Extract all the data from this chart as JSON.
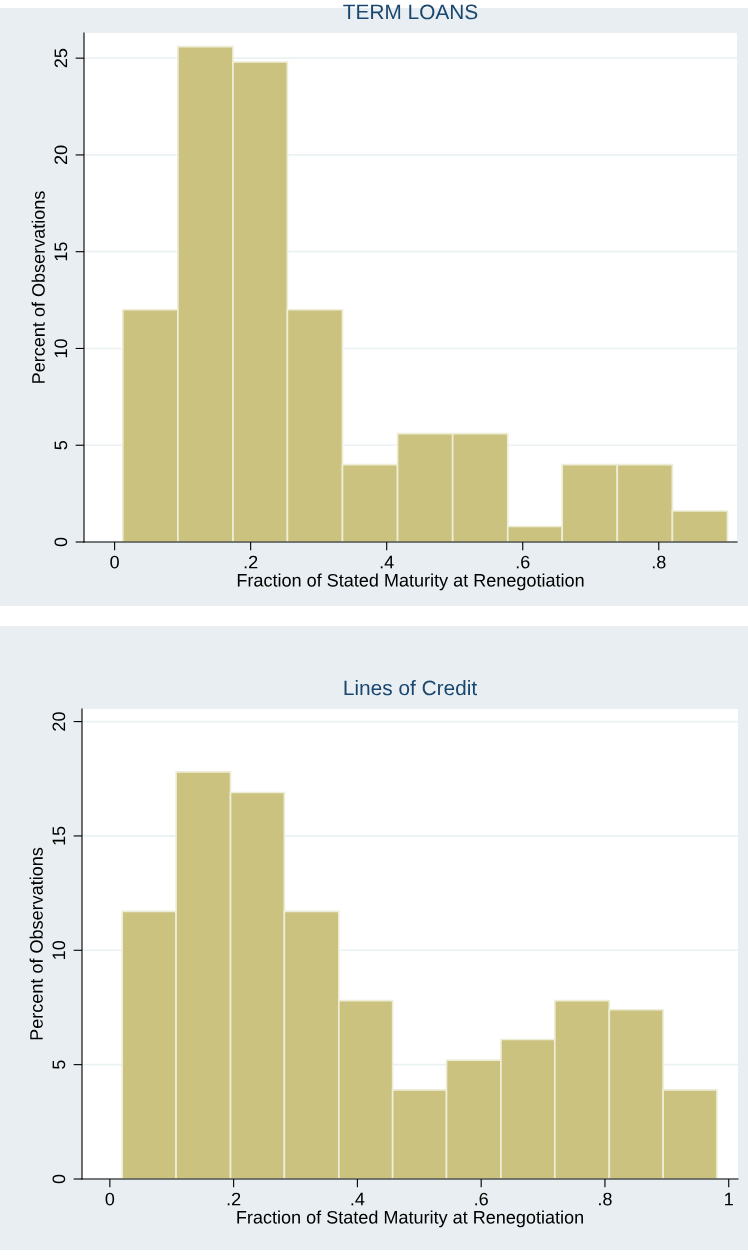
{
  "chart_data": [
    {
      "type": "histogram",
      "title": "TERM LOANS",
      "xlabel": "Fraction of Stated Maturity at Renegotiation",
      "ylabel": "Percent of Observations",
      "color": "#cac27e",
      "bins": [
        0.012,
        0.093,
        0.174,
        0.254,
        0.335,
        0.416,
        0.497,
        0.578,
        0.658,
        0.739,
        0.82,
        0.901
      ],
      "values": [
        12.0,
        25.6,
        24.8,
        12.0,
        4.0,
        5.6,
        5.6,
        0.8,
        4.0,
        4.0,
        1.6
      ],
      "xlim": [
        -0.045,
        0.915
      ],
      "ylim": [
        0,
        26.3
      ],
      "xticks": [
        0,
        {
          "value": 0.2,
          "label": ".2"
        },
        {
          "value": 0.4,
          "label": ".4"
        },
        {
          "value": 0.6,
          "label": ".6"
        },
        {
          "value": 0.8,
          "label": ".8"
        }
      ],
      "yticks": [
        0,
        5,
        10,
        15,
        20,
        25
      ],
      "grid": "y"
    },
    {
      "type": "histogram",
      "title": "Lines of Credit",
      "xlabel": "Fraction of Stated Maturity at Renegotiation",
      "ylabel": "Percent of Observations",
      "color": "#cac27e",
      "bins": [
        0.02,
        0.107,
        0.195,
        0.282,
        0.37,
        0.457,
        0.544,
        0.632,
        0.719,
        0.807,
        0.894,
        0.981
      ],
      "values": [
        11.7,
        17.8,
        16.9,
        11.7,
        7.8,
        3.9,
        5.2,
        6.1,
        7.8,
        7.4,
        3.9
      ],
      "xlim": [
        -0.045,
        1.015
      ],
      "ylim": [
        0,
        20.55
      ],
      "xticks": [
        0,
        {
          "value": 0.2,
          "label": ".2"
        },
        {
          "value": 0.4,
          "label": ".4"
        },
        {
          "value": 0.6,
          "label": ".6"
        },
        {
          "value": 0.8,
          "label": ".8"
        },
        1
      ],
      "yticks": [
        0,
        5,
        10,
        15,
        20
      ],
      "grid": "y"
    }
  ]
}
